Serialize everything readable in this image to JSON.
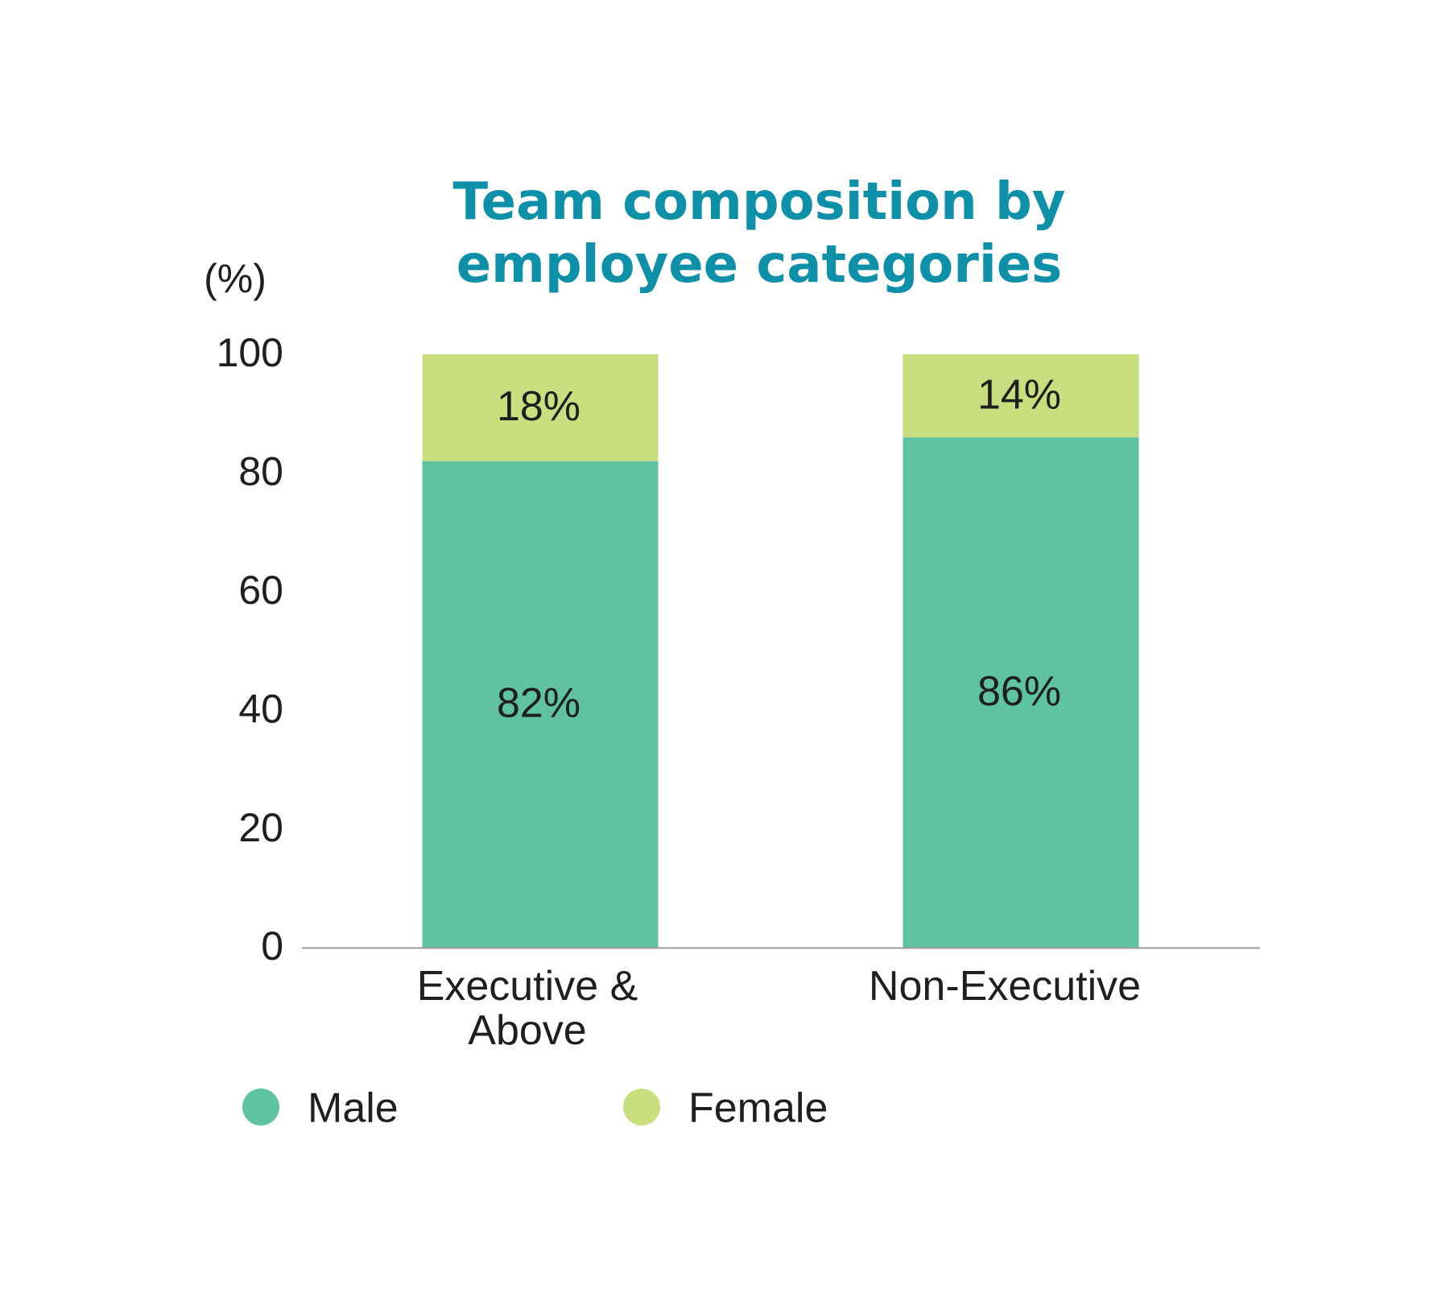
{
  "chart_data": {
    "type": "bar",
    "stacked": true,
    "title": "Team composition by employee categories",
    "title_lines": [
      "Team composition by",
      "employee categories"
    ],
    "unit_label": "(%)",
    "xlabel": "",
    "ylabel": "(%)",
    "ylim": [
      0,
      100
    ],
    "yticks": [
      0,
      20,
      40,
      60,
      80,
      100
    ],
    "categories": [
      {
        "lines": [
          "Executive &",
          "Above"
        ]
      },
      {
        "lines": [
          "Non-Executive"
        ]
      }
    ],
    "series": [
      {
        "name": "Male",
        "color": "#5FC3A0",
        "values": [
          82,
          86
        ],
        "labels": [
          "82%",
          "86%"
        ]
      },
      {
        "name": "Female",
        "color": "#C9DE7E",
        "values": [
          18,
          14
        ],
        "labels": [
          "18%",
          "14%"
        ]
      }
    ],
    "legend_position": "bottom-left",
    "grid": false
  },
  "colors": {
    "title": "#0E90A8",
    "text": "#1F1F1F",
    "axis": "#9A9A9A"
  }
}
